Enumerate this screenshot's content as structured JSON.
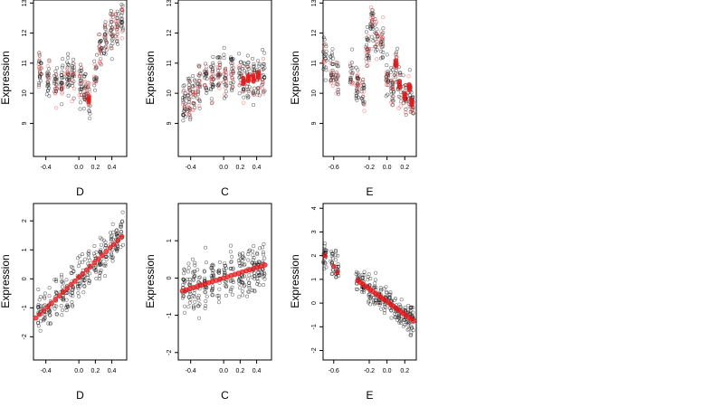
{
  "colors": {
    "points": "#000000",
    "fit": "#e41a1c",
    "fit_light": "#e8464b"
  },
  "chart_data": [
    {
      "type": "scatter",
      "xlabel": "D",
      "ylabel": "Expression",
      "xlim": [
        -0.55,
        0.58
      ],
      "ylim": [
        7.9,
        13.1
      ],
      "xticks": [
        -0.4,
        0.0,
        0.2,
        0.4
      ],
      "xtick_labels": [
        "-0.4",
        "0.0",
        "0.2",
        "0.4"
      ],
      "yticks": [
        9,
        10,
        11,
        12,
        13
      ],
      "ytick_labels": [
        "9",
        "10",
        "11",
        "12",
        "13"
      ],
      "x_groups": [
        -0.47,
        -0.37,
        -0.28,
        -0.2,
        -0.13,
        -0.07,
        0.02,
        0.08,
        0.12,
        0.2,
        0.26,
        0.32,
        0.4,
        0.46,
        0.52
      ],
      "fit_y": [
        10.7,
        10.4,
        10.3,
        10.4,
        10.6,
        10.5,
        10.3,
        10.2,
        9.8,
        10.6,
        11.5,
        11.8,
        12.1,
        12.3,
        12.5
      ],
      "spread": 0.85,
      "bold_groups": [
        8
      ]
    },
    {
      "type": "scatter",
      "xlabel": "C",
      "ylabel": "Expression",
      "xlim": [
        -0.55,
        0.58
      ],
      "ylim": [
        7.9,
        13.1
      ],
      "xticks": [
        -0.4,
        0.0,
        0.2,
        0.4
      ],
      "xtick_labels": [
        "-0.4",
        "0.0",
        "0.2",
        "0.4"
      ],
      "yticks": [
        9,
        10,
        11,
        12,
        13
      ],
      "ytick_labels": [
        "9",
        "10",
        "11",
        "12",
        "13"
      ],
      "x_groups": [
        -0.48,
        -0.42,
        -0.36,
        -0.3,
        -0.22,
        -0.14,
        -0.06,
        0.02,
        0.1,
        0.2,
        0.24,
        0.3,
        0.36,
        0.42,
        0.48
      ],
      "fit_y": [
        9.7,
        9.8,
        9.9,
        10.2,
        10.5,
        10.4,
        10.6,
        10.4,
        10.6,
        10.8,
        10.4,
        10.5,
        10.5,
        10.6,
        10.6
      ],
      "spread": 1.0,
      "bold_groups": [
        10,
        11,
        12,
        13
      ]
    },
    {
      "type": "scatter",
      "xlabel": "E",
      "ylabel": "Expression",
      "xlim": [
        -0.72,
        0.33
      ],
      "ylim": [
        7.9,
        13.1
      ],
      "xticks": [
        -0.6,
        -0.2,
        0.0,
        0.2
      ],
      "xtick_labels": [
        "-0.6",
        "-0.2",
        "0.0",
        "0.2"
      ],
      "yticks": [
        9,
        10,
        11,
        12,
        13
      ],
      "ytick_labels": [
        "9",
        "10",
        "11",
        "12",
        "13"
      ],
      "x_groups": [
        -0.7,
        -0.62,
        -0.56,
        -0.4,
        -0.33,
        -0.27,
        -0.22,
        -0.17,
        -0.12,
        -0.06,
        0.0,
        0.06,
        0.1,
        0.14,
        0.2,
        0.25,
        0.28
      ],
      "fit_y": [
        11.2,
        10.8,
        10.6,
        10.6,
        10.3,
        10.1,
        11.5,
        12.3,
        11.8,
        11.7,
        10.5,
        10.2,
        11.0,
        10.3,
        9.9,
        10.2,
        9.7
      ],
      "spread": 0.8,
      "bold_groups": [
        12,
        13,
        14,
        15,
        16
      ]
    },
    {
      "type": "scatter",
      "xlabel": "D",
      "ylabel": "Expression",
      "xlim": [
        -0.55,
        0.58
      ],
      "ylim": [
        -2.8,
        2.6
      ],
      "xticks": [
        -0.4,
        0.0,
        0.2,
        0.4
      ],
      "xtick_labels": [
        "-0.4",
        "0.0",
        "0.2",
        "0.4"
      ],
      "yticks": [
        -2,
        -1,
        0,
        1,
        2
      ],
      "ytick_labels": [
        "-2",
        "-1",
        "0",
        "1",
        "2"
      ],
      "fit_line": {
        "x": [
          -0.52,
          0.52
        ],
        "y": [
          -1.35,
          1.45
        ]
      },
      "x_groups": [
        -0.48,
        -0.42,
        -0.36,
        -0.28,
        -0.2,
        -0.14,
        -0.08,
        0.0,
        0.06,
        0.12,
        0.2,
        0.26,
        0.32,
        0.4,
        0.46,
        0.52
      ],
      "spread": 0.9
    },
    {
      "type": "scatter",
      "xlabel": "C",
      "ylabel": "Expression",
      "xlim": [
        -0.55,
        0.58
      ],
      "ylim": [
        -2.2,
        2.0
      ],
      "xticks": [
        -0.4,
        0.0,
        0.2,
        0.4
      ],
      "xtick_labels": [
        "-0.4",
        "0.0",
        "0.2",
        "0.4"
      ],
      "yticks": [
        -2,
        -1,
        0,
        1
      ],
      "ytick_labels": [
        "-2",
        "-1",
        "0",
        "1"
      ],
      "fit_line": {
        "x": [
          -0.5,
          0.5
        ],
        "y": [
          -0.35,
          0.35
        ]
      },
      "x_groups": [
        -0.48,
        -0.42,
        -0.36,
        -0.3,
        -0.22,
        -0.14,
        -0.06,
        0.02,
        0.1,
        0.2,
        0.24,
        0.3,
        0.36,
        0.42,
        0.48
      ],
      "spread": 0.9
    },
    {
      "type": "scatter",
      "xlabel": "E",
      "ylabel": "Expression",
      "xlim": [
        -0.72,
        0.33
      ],
      "ylim": [
        -2.4,
        4.2
      ],
      "xticks": [
        -0.6,
        -0.2,
        0.0,
        0.2
      ],
      "xtick_labels": [
        "-0.6",
        "-0.2",
        "0.0",
        "0.2"
      ],
      "yticks": [
        -2,
        -1,
        0,
        1,
        2,
        3,
        4
      ],
      "ytick_labels": [
        "-2",
        "-1",
        "0",
        "1",
        "2",
        "3",
        "4"
      ],
      "fit_line": {
        "x": [
          -0.33,
          0.3
        ],
        "y": [
          0.95,
          -0.75
        ]
      },
      "extra_fit_points": {
        "x": [
          -0.7,
          -0.6,
          -0.56
        ],
        "y": [
          2.0,
          1.55,
          1.3
        ]
      },
      "x_groups": [
        -0.7,
        -0.62,
        -0.56,
        -0.33,
        -0.27,
        -0.2,
        -0.14,
        -0.08,
        -0.02,
        0.04,
        0.1,
        0.15,
        0.2,
        0.25,
        0.28
      ],
      "spread": 0.8
    }
  ]
}
